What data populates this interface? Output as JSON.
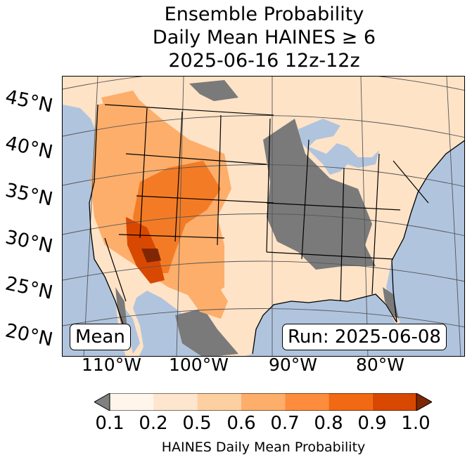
{
  "title": {
    "line1": "Ensemble Probability",
    "line2": "Daily Mean HAINES ≥ 6",
    "line3": "2025-06-16 12z-12z"
  },
  "map": {
    "lat_labels": [
      "45°N",
      "40°N",
      "35°N",
      "30°N",
      "25°N",
      "20°N"
    ],
    "lon_labels": [
      "110°W",
      "100°W",
      "90°W",
      "80°W"
    ],
    "mean_label": "Mean",
    "run_label": "Run: 2025-06-08",
    "colors": {
      "ocean": "#b0c4de",
      "land": "#ffe3c7",
      "low_gray": "#7a7a7a",
      "orange_light": "#fdae6b",
      "orange_mid": "#f47b25",
      "orange_dark": "#d94801",
      "brown": "#7f2704"
    }
  },
  "colorbar": {
    "ticks": [
      "0.1",
      "0.2",
      "0.5",
      "0.6",
      "0.7",
      "0.8",
      "0.9",
      "1.0"
    ],
    "colors": [
      "#fff5eb",
      "#fee6ce",
      "#fdd0a2",
      "#fdae6b",
      "#fd8d3c",
      "#f16913",
      "#d94801"
    ],
    "under_color": "#808080",
    "over_color": "#7f2704",
    "label": "HAINES Daily Mean Probability"
  }
}
